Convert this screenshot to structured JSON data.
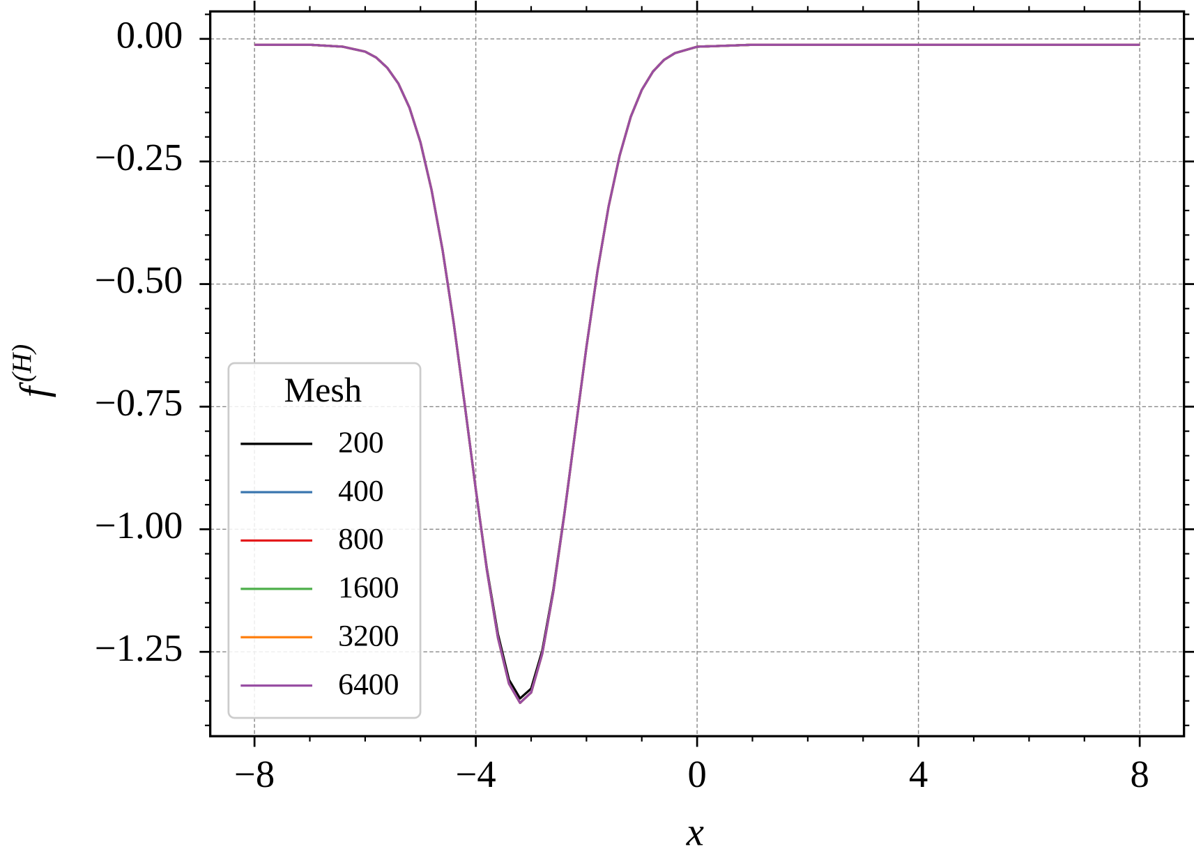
{
  "chart_data": {
    "type": "line",
    "xlabel": "x",
    "ylabel": "f",
    "ylabel_sup": "(H)",
    "legend_title": "Mesh",
    "legend_position": "lower left",
    "grid": true,
    "xlim": [
      -8.8,
      8.8
    ],
    "ylim": [
      -1.422,
      0.056
    ],
    "xticks": [
      {
        "value": -8,
        "label": "−8"
      },
      {
        "value": -4,
        "label": "−4"
      },
      0,
      4,
      {
        "value": 8,
        "label": "8"
      }
    ],
    "yticks": [
      {
        "value": 0,
        "label": "0.00"
      },
      {
        "value": -0.25,
        "label": "−0.25"
      },
      {
        "value": -0.5,
        "label": "−0.50"
      },
      {
        "value": -0.75,
        "label": "−0.75"
      },
      {
        "value": -1,
        "label": "−1.00"
      },
      {
        "value": -1.25,
        "label": "−1.25"
      }
    ],
    "xminorticks": [
      -8,
      -7,
      -6,
      -5,
      -4,
      -3,
      -2,
      -1,
      0,
      1,
      2,
      3,
      4,
      5,
      6,
      7,
      8
    ],
    "yminorticks": [
      -1.4,
      -1.35,
      -1.3,
      -1.25,
      -1.2,
      -1.15,
      -1.1,
      -1.05,
      -1,
      -0.95,
      -0.9,
      -0.85,
      -0.8,
      -0.75,
      -0.7,
      -0.65,
      -0.6,
      -0.55,
      -0.5,
      -0.45,
      -0.4,
      -0.35,
      -0.3,
      -0.25,
      -0.2,
      -0.15,
      -0.1,
      -0.05,
      0,
      0.05
    ],
    "x": [
      -8,
      -7,
      -6.4,
      -6,
      -5.8,
      -5.6,
      -5.4,
      -5.2,
      -5,
      -4.8,
      -4.6,
      -4.4,
      -4.2,
      -4,
      -3.8,
      -3.6,
      -3.4,
      -3.2,
      -3,
      -2.8,
      -2.6,
      -2.4,
      -2.2,
      -2,
      -1.8,
      -1.6,
      -1.4,
      -1.2,
      -1,
      -0.8,
      -0.6,
      -0.4,
      0,
      1,
      2,
      3,
      4,
      5,
      6,
      7,
      8
    ],
    "series": [
      {
        "name": "200",
        "color": "#000000",
        "values": [
          -0.012,
          -0.012,
          -0.016,
          -0.026,
          -0.038,
          -0.059,
          -0.091,
          -0.14,
          -0.211,
          -0.308,
          -0.431,
          -0.579,
          -0.746,
          -0.919,
          -1.08,
          -1.214,
          -1.307,
          -1.345,
          -1.325,
          -1.248,
          -1.124,
          -0.968,
          -0.798,
          -0.628,
          -0.473,
          -0.342,
          -0.238,
          -0.159,
          -0.104,
          -0.067,
          -0.043,
          -0.029,
          -0.016,
          -0.012,
          -0.012,
          -0.012,
          -0.012,
          -0.012,
          -0.012,
          -0.012,
          -0.012
        ]
      },
      {
        "name": "400",
        "color": "#3a76af",
        "values": [
          -0.012,
          -0.012,
          -0.016,
          -0.026,
          -0.038,
          -0.059,
          -0.091,
          -0.14,
          -0.211,
          -0.308,
          -0.431,
          -0.579,
          -0.746,
          -0.919,
          -1.083,
          -1.221,
          -1.315,
          -1.354,
          -1.333,
          -1.254,
          -1.128,
          -0.97,
          -0.798,
          -0.628,
          -0.473,
          -0.342,
          -0.238,
          -0.159,
          -0.104,
          -0.067,
          -0.043,
          -0.029,
          -0.016,
          -0.012,
          -0.012,
          -0.012,
          -0.012,
          -0.012,
          -0.012,
          -0.012,
          -0.012
        ]
      },
      {
        "name": "800",
        "color": "#e41a1c",
        "values": [
          -0.012,
          -0.012,
          -0.016,
          -0.026,
          -0.038,
          -0.059,
          -0.091,
          -0.14,
          -0.211,
          -0.308,
          -0.431,
          -0.579,
          -0.746,
          -0.919,
          -1.083,
          -1.221,
          -1.315,
          -1.354,
          -1.333,
          -1.254,
          -1.128,
          -0.97,
          -0.798,
          -0.628,
          -0.473,
          -0.342,
          -0.238,
          -0.159,
          -0.104,
          -0.067,
          -0.043,
          -0.029,
          -0.016,
          -0.012,
          -0.012,
          -0.012,
          -0.012,
          -0.012,
          -0.012,
          -0.012,
          -0.012
        ]
      },
      {
        "name": "1600",
        "color": "#4daf4a",
        "values": [
          -0.012,
          -0.012,
          -0.016,
          -0.026,
          -0.038,
          -0.059,
          -0.091,
          -0.14,
          -0.211,
          -0.308,
          -0.431,
          -0.579,
          -0.746,
          -0.919,
          -1.083,
          -1.221,
          -1.315,
          -1.354,
          -1.333,
          -1.254,
          -1.128,
          -0.97,
          -0.798,
          -0.628,
          -0.473,
          -0.342,
          -0.238,
          -0.159,
          -0.104,
          -0.067,
          -0.043,
          -0.029,
          -0.016,
          -0.012,
          -0.012,
          -0.012,
          -0.012,
          -0.012,
          -0.012,
          -0.012,
          -0.012
        ]
      },
      {
        "name": "3200",
        "color": "#ff7f0e",
        "values": [
          -0.012,
          -0.012,
          -0.016,
          -0.026,
          -0.038,
          -0.059,
          -0.091,
          -0.14,
          -0.211,
          -0.308,
          -0.431,
          -0.579,
          -0.746,
          -0.919,
          -1.083,
          -1.221,
          -1.315,
          -1.354,
          -1.333,
          -1.254,
          -1.128,
          -0.97,
          -0.798,
          -0.628,
          -0.473,
          -0.342,
          -0.238,
          -0.159,
          -0.104,
          -0.067,
          -0.043,
          -0.029,
          -0.016,
          -0.012,
          -0.012,
          -0.012,
          -0.012,
          -0.012,
          -0.012,
          -0.012,
          -0.012
        ]
      },
      {
        "name": "6400",
        "color": "#984ea3",
        "values": [
          -0.012,
          -0.012,
          -0.016,
          -0.026,
          -0.038,
          -0.059,
          -0.091,
          -0.14,
          -0.211,
          -0.308,
          -0.431,
          -0.579,
          -0.746,
          -0.919,
          -1.083,
          -1.221,
          -1.315,
          -1.354,
          -1.333,
          -1.254,
          -1.128,
          -0.97,
          -0.798,
          -0.628,
          -0.473,
          -0.342,
          -0.238,
          -0.159,
          -0.104,
          -0.067,
          -0.043,
          -0.029,
          -0.016,
          -0.012,
          -0.012,
          -0.012,
          -0.012,
          -0.012,
          -0.012,
          -0.012,
          -0.012
        ]
      }
    ]
  }
}
